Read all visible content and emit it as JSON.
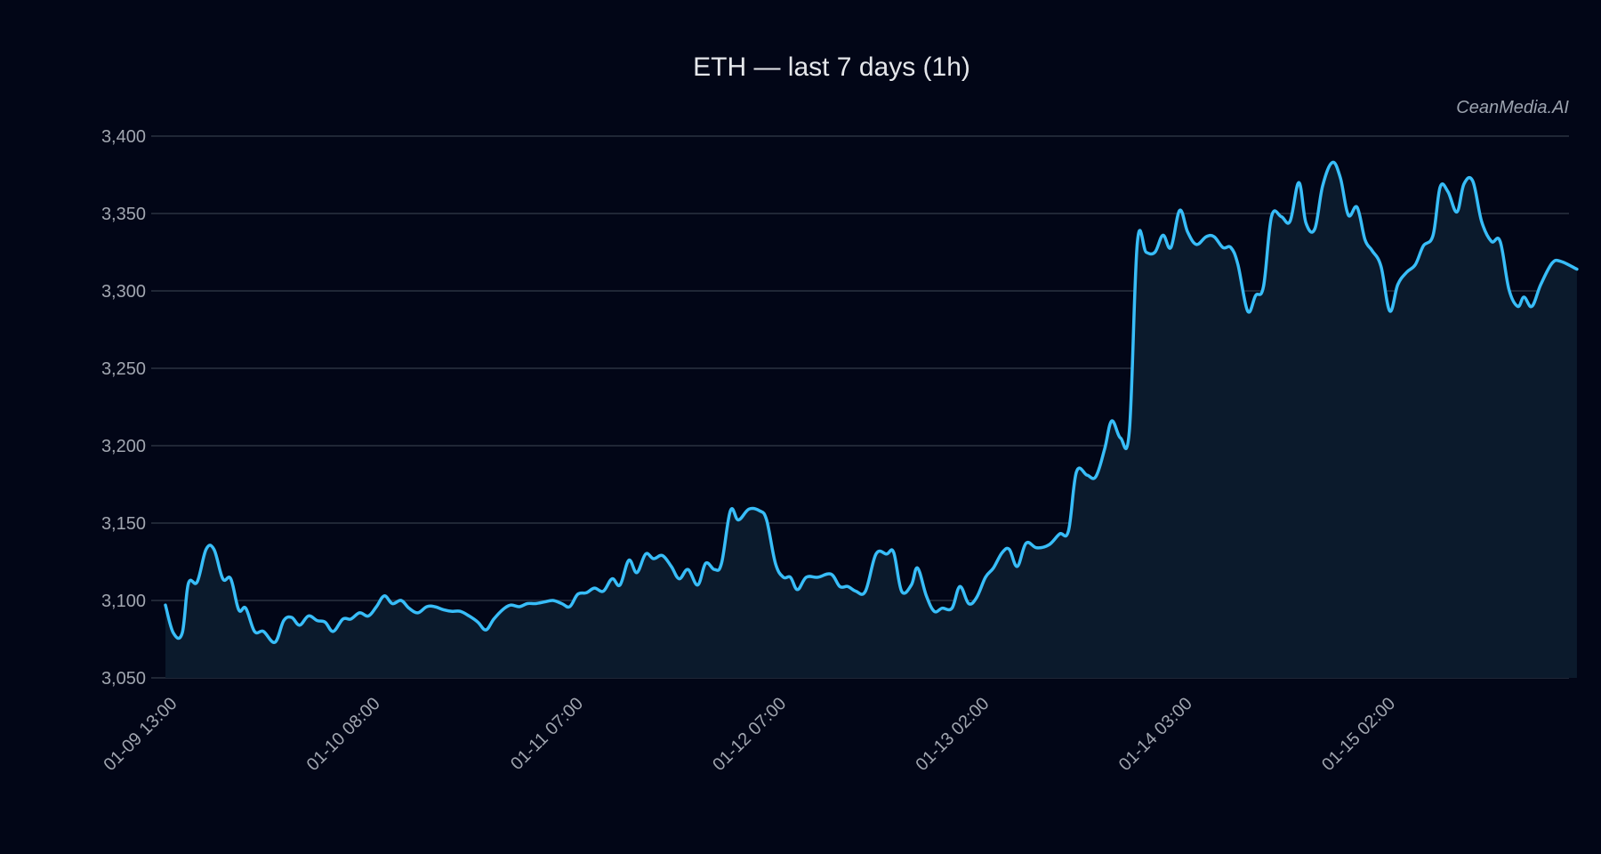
{
  "chart_data": {
    "type": "area",
    "title": "ETH — last 7 days (1h)",
    "watermark": "CeanMedia.AI",
    "xlabel": "",
    "ylabel": "",
    "ylim": [
      3050,
      3400
    ],
    "yticks": [
      3050,
      3100,
      3150,
      3200,
      3250,
      3300,
      3350,
      3400
    ],
    "ytick_labels": [
      "3,050",
      "3,100",
      "3,150",
      "3,200",
      "3,250",
      "3,300",
      "3,350",
      "3,400"
    ],
    "xticks": [
      {
        "index": 0,
        "label": "01-09 13:00"
      },
      {
        "index": 23,
        "label": "01-10 08:00"
      },
      {
        "index": 46,
        "label": "01-11 07:00"
      },
      {
        "index": 69,
        "label": "01-12 07:00"
      },
      {
        "index": 92,
        "label": "01-13 02:00"
      },
      {
        "index": 115,
        "label": "01-14 03:00"
      },
      {
        "index": 138,
        "label": "01-15 02:00"
      }
    ],
    "grid": true,
    "legend": null,
    "colors": {
      "background": "#020617",
      "line": "#38bdf8",
      "fill": "#0b1a2c",
      "grid": "#2b3240",
      "text": "#a1a6b0",
      "title": "#e5e7eb"
    },
    "n_points": 160,
    "series": [
      {
        "name": "ETH",
        "points": [
          [
            0,
            3097
          ],
          [
            0.9,
            3079
          ],
          [
            1.9,
            3079
          ],
          [
            2.6,
            3111
          ],
          [
            3.6,
            3112
          ],
          [
            4.6,
            3133
          ],
          [
            5.5,
            3133
          ],
          [
            6.5,
            3114
          ],
          [
            7.4,
            3114
          ],
          [
            8.3,
            3094
          ],
          [
            9.1,
            3095
          ],
          [
            10.1,
            3080
          ],
          [
            11.1,
            3080
          ],
          [
            12.4,
            3073
          ],
          [
            13.4,
            3087
          ],
          [
            14.3,
            3089
          ],
          [
            15.2,
            3084
          ],
          [
            16.2,
            3090
          ],
          [
            17.2,
            3087
          ],
          [
            18.1,
            3086
          ],
          [
            19.0,
            3080
          ],
          [
            20.1,
            3088
          ],
          [
            21.0,
            3088
          ],
          [
            22.0,
            3092
          ],
          [
            23.0,
            3090
          ],
          [
            23.9,
            3096
          ],
          [
            24.8,
            3103
          ],
          [
            25.7,
            3098
          ],
          [
            26.7,
            3100
          ],
          [
            27.6,
            3095
          ],
          [
            28.6,
            3092
          ],
          [
            29.6,
            3096
          ],
          [
            30.5,
            3096
          ],
          [
            31.5,
            3094
          ],
          [
            32.5,
            3093
          ],
          [
            33.4,
            3093
          ],
          [
            34.4,
            3090
          ],
          [
            35.4,
            3086
          ],
          [
            36.3,
            3081
          ],
          [
            37.2,
            3088
          ],
          [
            38.2,
            3094
          ],
          [
            39.1,
            3097
          ],
          [
            40.1,
            3096
          ],
          [
            41.0,
            3098
          ],
          [
            41.9,
            3098
          ],
          [
            42.9,
            3099
          ],
          [
            43.9,
            3100
          ],
          [
            44.9,
            3098
          ],
          [
            45.8,
            3096
          ],
          [
            46.7,
            3104
          ],
          [
            47.7,
            3105
          ],
          [
            48.6,
            3108
          ],
          [
            49.6,
            3106
          ],
          [
            50.6,
            3114
          ],
          [
            51.5,
            3110
          ],
          [
            52.5,
            3126
          ],
          [
            53.4,
            3118
          ],
          [
            54.4,
            3130
          ],
          [
            55.3,
            3127
          ],
          [
            56.3,
            3129
          ],
          [
            57.3,
            3122
          ],
          [
            58.2,
            3114
          ],
          [
            59.2,
            3120
          ],
          [
            60.3,
            3110
          ],
          [
            61.2,
            3124
          ],
          [
            62.2,
            3120
          ],
          [
            63.0,
            3124
          ],
          [
            64.0,
            3158
          ],
          [
            64.9,
            3152
          ],
          [
            66.1,
            3159
          ],
          [
            67.3,
            3158
          ],
          [
            68.1,
            3152
          ],
          [
            69.1,
            3124
          ],
          [
            70.0,
            3115
          ],
          [
            70.8,
            3115
          ],
          [
            71.6,
            3107
          ],
          [
            72.6,
            3115
          ],
          [
            73.9,
            3115
          ],
          [
            75.4,
            3117
          ],
          [
            76.4,
            3109
          ],
          [
            77.3,
            3109
          ],
          [
            78.2,
            3106
          ],
          [
            79.3,
            3106
          ],
          [
            80.5,
            3130
          ],
          [
            81.7,
            3130
          ],
          [
            82.5,
            3131
          ],
          [
            83.4,
            3106
          ],
          [
            84.5,
            3110
          ],
          [
            85.2,
            3121
          ],
          [
            86.2,
            3103
          ],
          [
            87.1,
            3093
          ],
          [
            88.0,
            3095
          ],
          [
            89.1,
            3095
          ],
          [
            90.0,
            3109
          ],
          [
            91.0,
            3098
          ],
          [
            91.9,
            3102
          ],
          [
            92.9,
            3115
          ],
          [
            93.8,
            3121
          ],
          [
            94.8,
            3131
          ],
          [
            95.6,
            3133
          ],
          [
            96.5,
            3122
          ],
          [
            97.5,
            3137
          ],
          [
            98.7,
            3134
          ],
          [
            100.1,
            3136
          ],
          [
            101.3,
            3143
          ],
          [
            102.3,
            3145
          ],
          [
            103.2,
            3183
          ],
          [
            104.4,
            3181
          ],
          [
            105.4,
            3180
          ],
          [
            106.4,
            3198
          ],
          [
            107.2,
            3216
          ],
          [
            108.2,
            3205
          ],
          [
            109.2,
            3210
          ],
          [
            110.1,
            3331
          ],
          [
            111.1,
            3325
          ],
          [
            112.1,
            3325
          ],
          [
            113.0,
            3336
          ],
          [
            113.9,
            3328
          ],
          [
            114.9,
            3352
          ],
          [
            115.8,
            3338
          ],
          [
            116.8,
            3330
          ],
          [
            117.9,
            3335
          ],
          [
            118.8,
            3335
          ],
          [
            119.8,
            3328
          ],
          [
            120.7,
            3328
          ],
          [
            121.5,
            3317
          ],
          [
            122.6,
            3287
          ],
          [
            123.5,
            3297
          ],
          [
            124.4,
            3303
          ],
          [
            125.3,
            3348
          ],
          [
            126.4,
            3348
          ],
          [
            127.4,
            3345
          ],
          [
            128.4,
            3370
          ],
          [
            129.2,
            3344
          ],
          [
            130.2,
            3340
          ],
          [
            131.1,
            3368
          ],
          [
            132.2,
            3383
          ],
          [
            133.1,
            3373
          ],
          [
            134.0,
            3349
          ],
          [
            135.0,
            3354
          ],
          [
            135.9,
            3333
          ],
          [
            136.7,
            3326
          ],
          [
            137.7,
            3316
          ],
          [
            138.7,
            3287
          ],
          [
            139.6,
            3304
          ],
          [
            140.6,
            3312
          ],
          [
            141.6,
            3317
          ],
          [
            142.5,
            3329
          ],
          [
            143.6,
            3336
          ],
          [
            144.4,
            3367
          ],
          [
            145.3,
            3364
          ],
          [
            146.3,
            3351
          ],
          [
            147.1,
            3369
          ],
          [
            148.1,
            3371
          ],
          [
            149.1,
            3345
          ],
          [
            150.2,
            3332
          ],
          [
            151.2,
            3332
          ],
          [
            152.2,
            3301
          ],
          [
            153.2,
            3290
          ],
          [
            153.9,
            3296
          ],
          [
            154.8,
            3290
          ],
          [
            155.8,
            3304
          ],
          [
            157.1,
            3318
          ],
          [
            158.1,
            3319
          ],
          [
            159.9,
            3314
          ]
        ]
      }
    ]
  }
}
